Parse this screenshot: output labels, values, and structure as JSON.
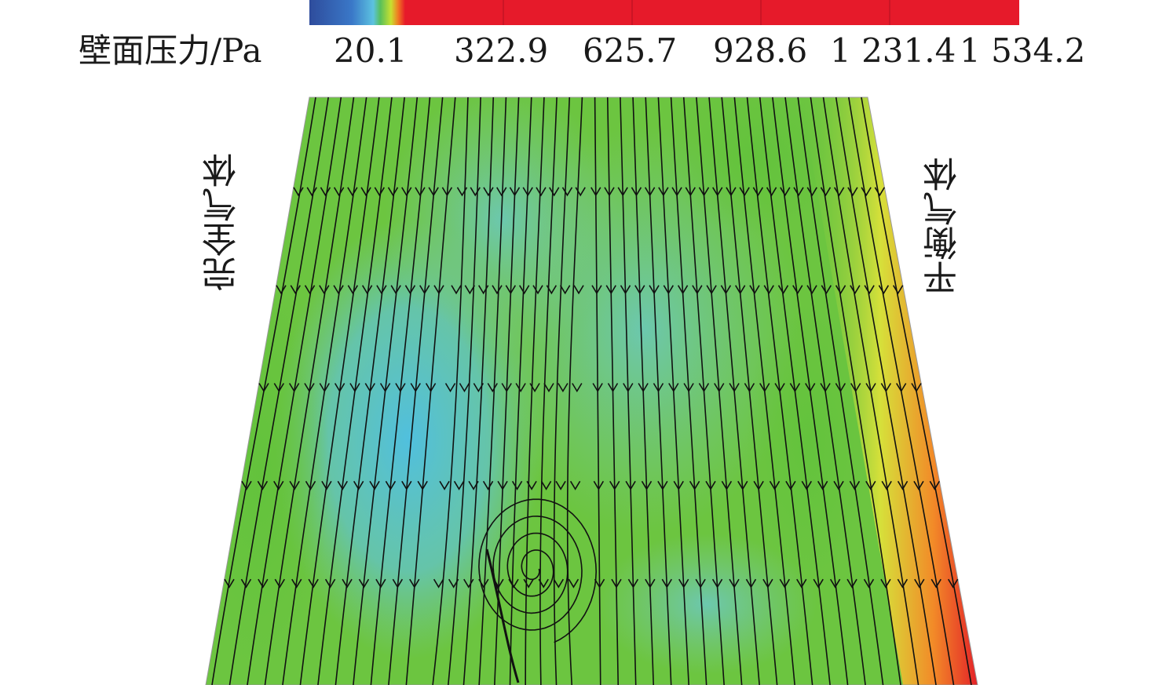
{
  "colorbar": {
    "title": "壁面压力/Pa",
    "ticks": [
      "20.1",
      "322.9",
      "625.7",
      "928.6",
      "1 231.4",
      "1 534.2"
    ]
  },
  "labels": {
    "left": "完全气体",
    "right": "平衡气体"
  }
}
